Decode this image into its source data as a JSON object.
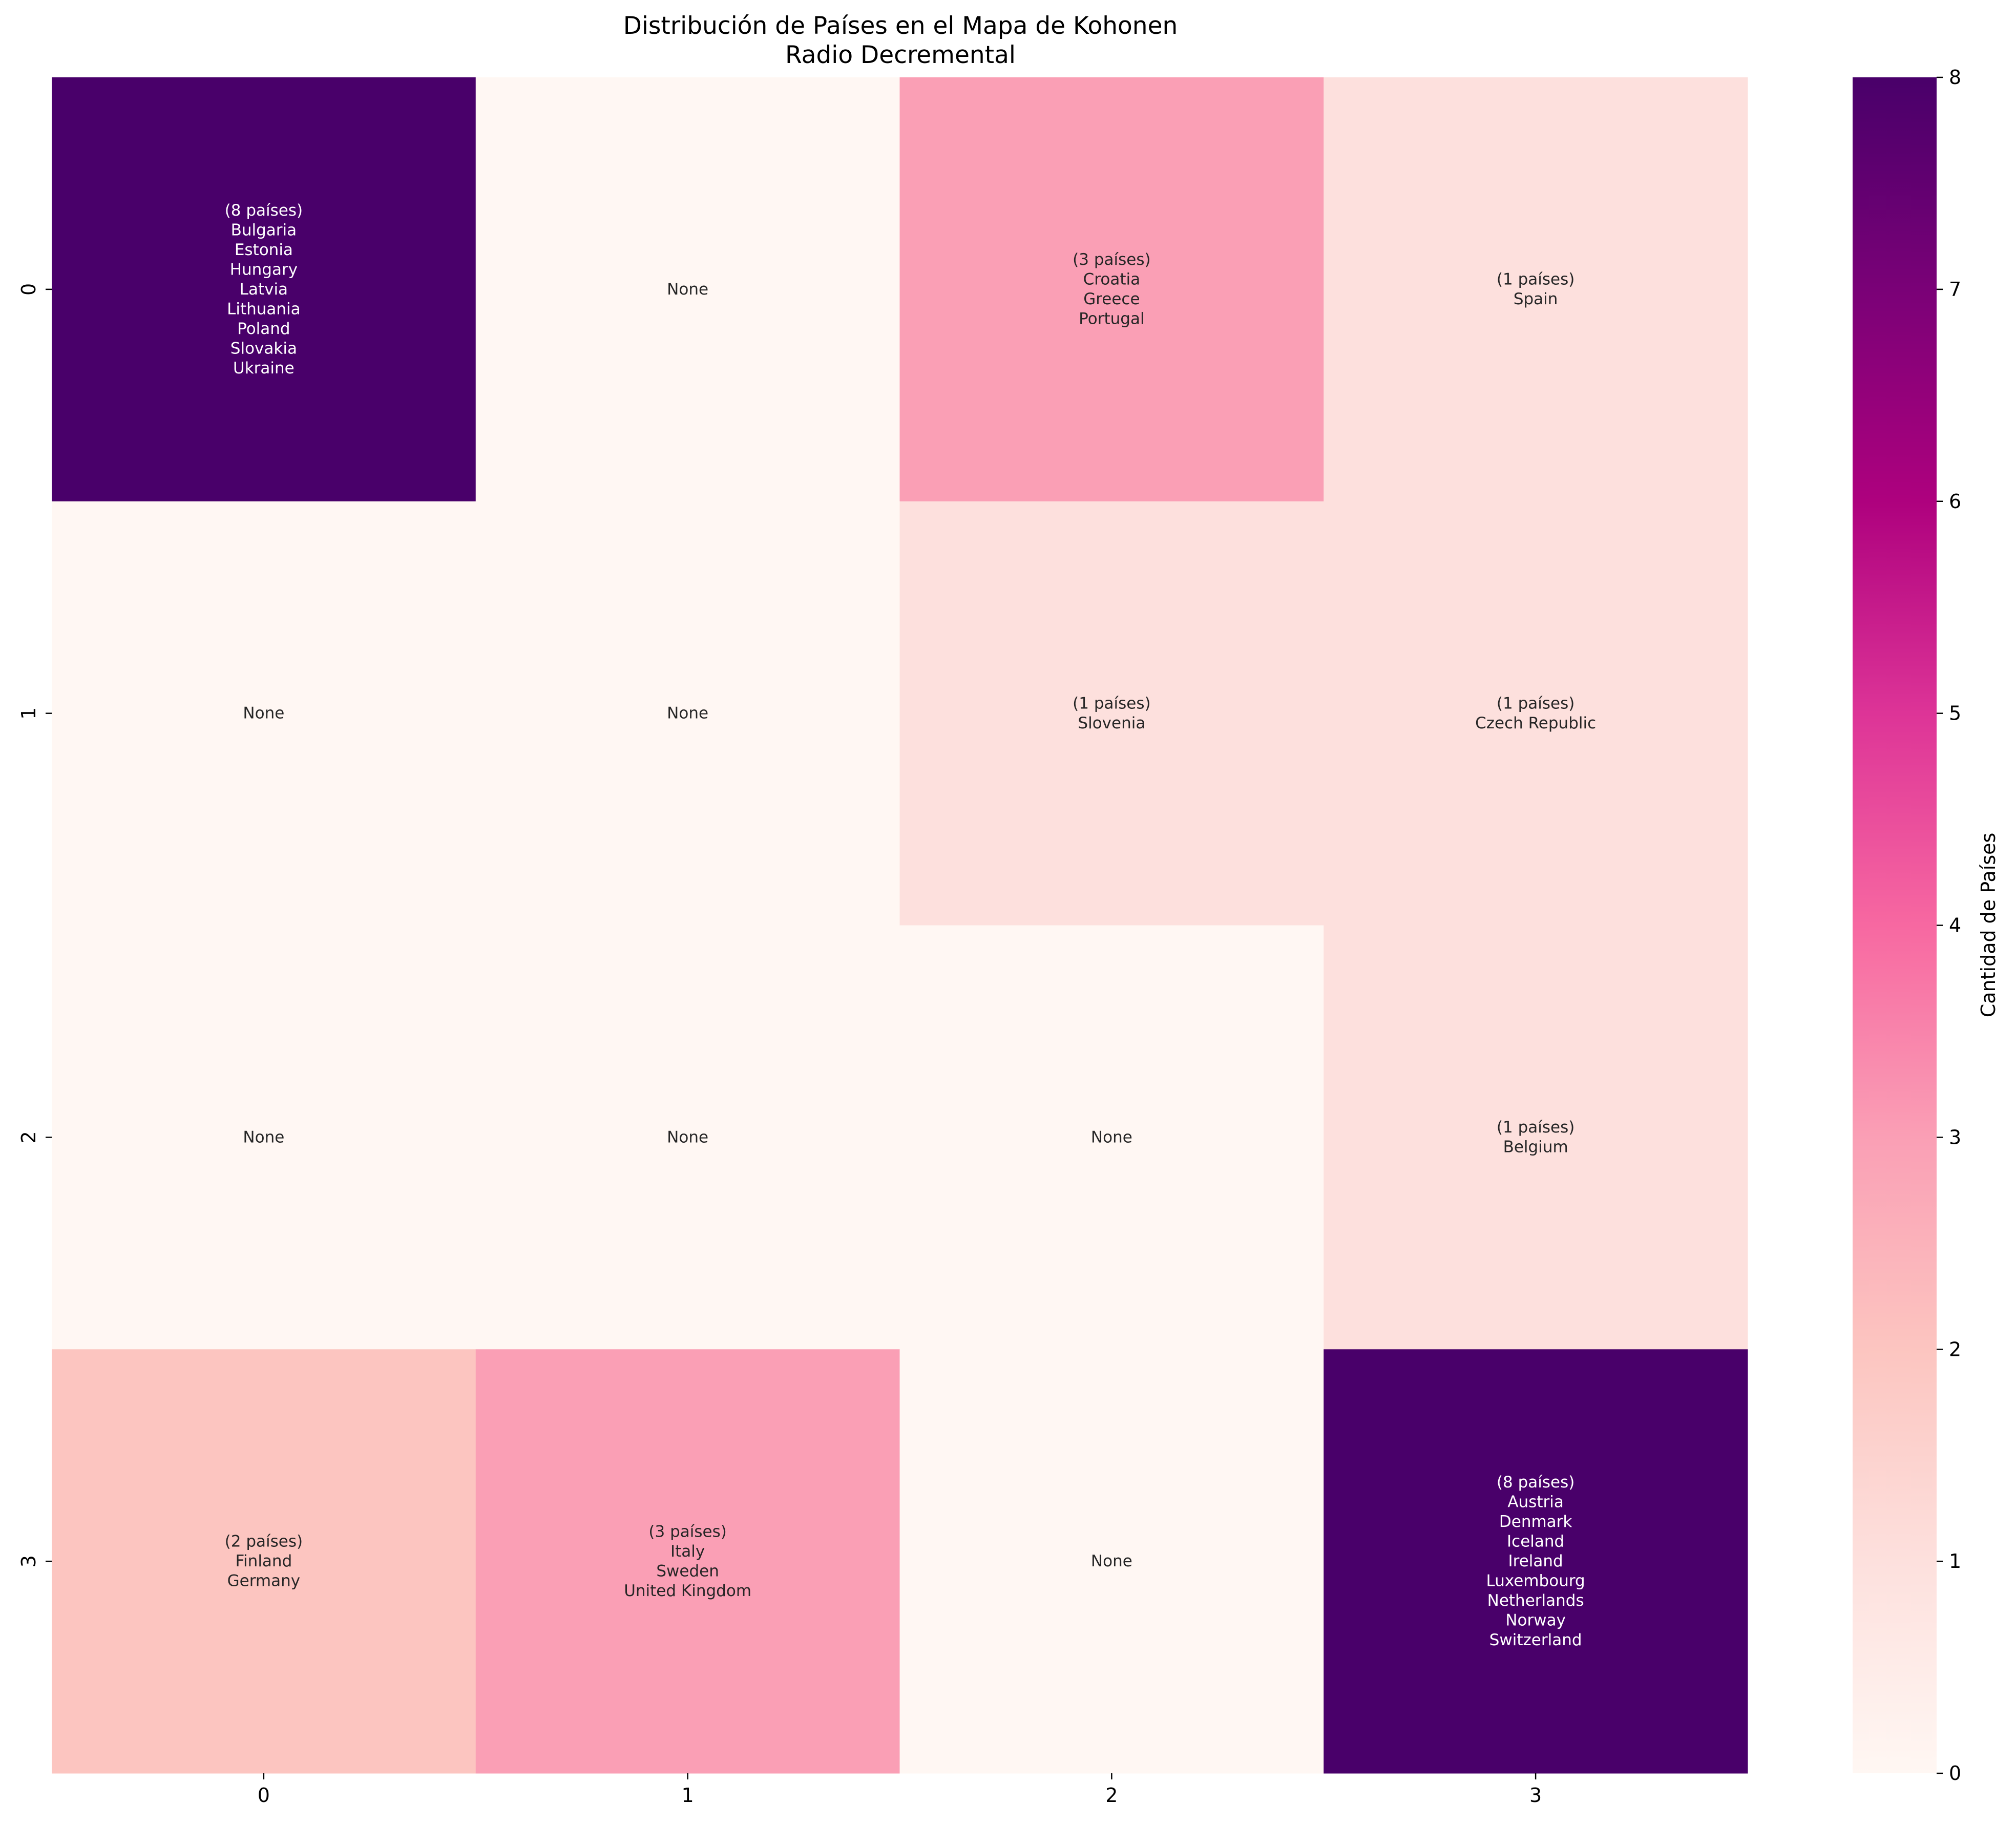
{
  "chart_data": {
    "type": "heatmap",
    "title": "Distribución de Países en el Mapa de Kohonen",
    "subtitle": "Radio Decremental",
    "xlabel": "",
    "ylabel": "",
    "x_ticks": [
      "0",
      "1",
      "2",
      "3"
    ],
    "y_ticks": [
      "0",
      "1",
      "2",
      "3"
    ],
    "colormap": "RdPu",
    "colorbar": {
      "label": "Cantidad de Países",
      "range": [
        0,
        8
      ],
      "ticks": [
        "0",
        "1",
        "2",
        "3",
        "4",
        "5",
        "6",
        "7",
        "8"
      ]
    },
    "grid": false,
    "values": [
      [
        8,
        0,
        3,
        1
      ],
      [
        0,
        0,
        1,
        1
      ],
      [
        0,
        0,
        0,
        1
      ],
      [
        2,
        3,
        0,
        8
      ]
    ],
    "cell_labels": [
      [
        [
          "(8 países)",
          "Bulgaria",
          "Estonia",
          "Hungary",
          "Latvia",
          "Lithuania",
          "Poland",
          "Slovakia",
          "Ukraine"
        ],
        [
          "None"
        ],
        [
          "(3 países)",
          "Croatia",
          "Greece",
          "Portugal"
        ],
        [
          "(1 países)",
          "Spain"
        ]
      ],
      [
        [
          "None"
        ],
        [
          "None"
        ],
        [
          "(1 países)",
          "Slovenia"
        ],
        [
          "(1 países)",
          "Czech Republic"
        ]
      ],
      [
        [
          "None"
        ],
        [
          "None"
        ],
        [
          "None"
        ],
        [
          "(1 países)",
          "Belgium"
        ]
      ],
      [
        [
          "(2 países)",
          "Finland",
          "Germany"
        ],
        [
          "(3 países)",
          "Italy",
          "Sweden",
          "United Kingdom"
        ],
        [
          "None"
        ],
        [
          "(8 países)",
          "Austria",
          "Denmark",
          "Iceland",
          "Ireland",
          "Luxembourg",
          "Netherlands",
          "Norway",
          "Switzerland"
        ]
      ]
    ]
  }
}
